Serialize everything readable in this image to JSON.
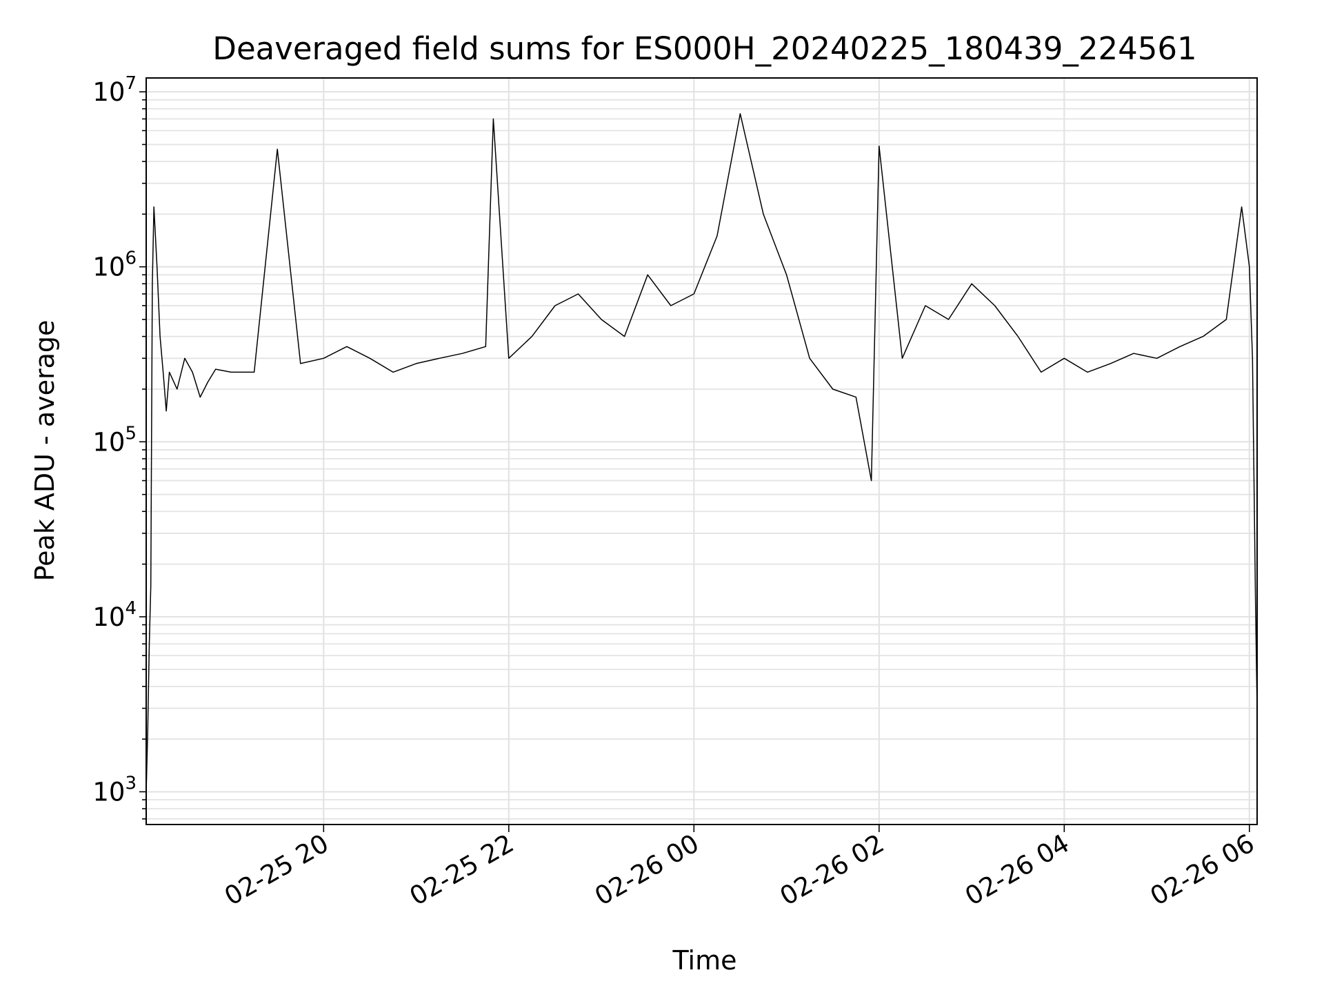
{
  "chart_data": {
    "type": "line",
    "title": "Deaveraged field sums for ES000H_20240225_180439_224561",
    "xlabel": "Time",
    "ylabel": "Peak ADU - average",
    "yscale": "log",
    "ylim": [
      650,
      12000000
    ],
    "xlim": [
      "2024-02-25 18:05",
      "2024-02-26 06:05"
    ],
    "grid": true,
    "x_ticks": [
      {
        "label": "02-25 20",
        "value": "2024-02-25 20:00"
      },
      {
        "label": "02-25 22",
        "value": "2024-02-25 22:00"
      },
      {
        "label": "02-26 00",
        "value": "2024-02-26 00:00"
      },
      {
        "label": "02-26 02",
        "value": "2024-02-26 02:00"
      },
      {
        "label": "02-26 04",
        "value": "2024-02-26 04:00"
      },
      {
        "label": "02-26 06",
        "value": "2024-02-26 06:00"
      }
    ],
    "y_ticks": [
      {
        "base": "10",
        "exp": "3",
        "value": 1000
      },
      {
        "base": "10",
        "exp": "4",
        "value": 10000
      },
      {
        "base": "10",
        "exp": "5",
        "value": 100000
      },
      {
        "base": "10",
        "exp": "6",
        "value": 1000000
      },
      {
        "base": "10",
        "exp": "7",
        "value": 10000000
      }
    ],
    "series": [
      {
        "color": "#000000",
        "x": [
          "2024-02-25 18:05",
          "2024-02-25 18:06",
          "2024-02-25 18:07",
          "2024-02-25 18:08",
          "2024-02-25 18:09",
          "2024-02-25 18:10",
          "2024-02-25 18:12",
          "2024-02-25 18:14",
          "2024-02-25 18:16",
          "2024-02-25 18:18",
          "2024-02-25 18:20",
          "2024-02-25 18:25",
          "2024-02-25 18:30",
          "2024-02-25 18:35",
          "2024-02-25 18:40",
          "2024-02-25 18:45",
          "2024-02-25 18:50",
          "2024-02-25 19:00",
          "2024-02-25 19:15",
          "2024-02-25 19:30",
          "2024-02-25 19:45",
          "2024-02-25 20:00",
          "2024-02-25 20:15",
          "2024-02-25 20:30",
          "2024-02-25 20:45",
          "2024-02-25 21:00",
          "2024-02-25 21:15",
          "2024-02-25 21:30",
          "2024-02-25 21:45",
          "2024-02-25 21:50",
          "2024-02-25 22:00",
          "2024-02-25 22:15",
          "2024-02-25 22:30",
          "2024-02-25 22:45",
          "2024-02-25 23:00",
          "2024-02-25 23:15",
          "2024-02-25 23:30",
          "2024-02-25 23:45",
          "2024-02-26 00:00",
          "2024-02-26 00:15",
          "2024-02-26 00:30",
          "2024-02-26 00:45",
          "2024-02-26 01:00",
          "2024-02-26 01:15",
          "2024-02-26 01:30",
          "2024-02-26 01:45",
          "2024-02-26 01:55",
          "2024-02-26 02:00",
          "2024-02-26 02:15",
          "2024-02-26 02:30",
          "2024-02-26 02:45",
          "2024-02-26 03:00",
          "2024-02-26 03:15",
          "2024-02-26 03:30",
          "2024-02-26 03:45",
          "2024-02-26 04:00",
          "2024-02-26 04:15",
          "2024-02-26 04:30",
          "2024-02-26 04:45",
          "2024-02-26 05:00",
          "2024-02-26 05:15",
          "2024-02-26 05:30",
          "2024-02-26 05:45",
          "2024-02-26 05:55",
          "2024-02-26 06:00",
          "2024-02-26 06:02",
          "2024-02-26 06:04",
          "2024-02-26 06:05"
        ],
        "y": [
          1000,
          2200,
          7000,
          15000,
          800000,
          2200000,
          1000000,
          400000,
          250000,
          150000,
          250000,
          200000,
          300000,
          250000,
          180000,
          220000,
          260000,
          250000,
          250000,
          4700000,
          280000,
          300000,
          350000,
          300000,
          250000,
          280000,
          300000,
          320000,
          350000,
          7000000,
          300000,
          400000,
          600000,
          700000,
          500000,
          400000,
          900000,
          600000,
          700000,
          1500000,
          7500000,
          2000000,
          900000,
          300000,
          200000,
          180000,
          60000,
          4900000,
          300000,
          600000,
          500000,
          800000,
          600000,
          400000,
          250000,
          300000,
          250000,
          280000,
          320000,
          300000,
          350000,
          400000,
          500000,
          2200000,
          1000000,
          300000,
          11000,
          3000
        ]
      }
    ]
  }
}
